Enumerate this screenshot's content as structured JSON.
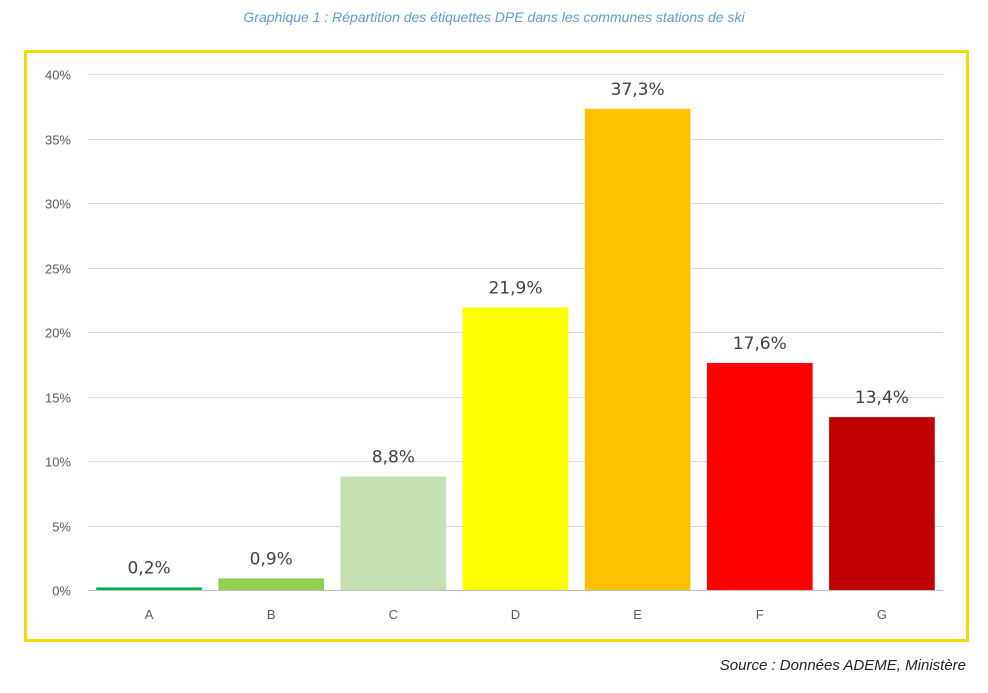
{
  "caption": "Graphique 1 : Répartition des étiquettes DPE dans les communes stations de ski",
  "source": "Source : Données ADEME, Ministère",
  "chart_data": {
    "type": "bar",
    "title": "Graphique 1 : Répartition des étiquettes DPE dans les communes stations de ski",
    "xlabel": "",
    "ylabel": "",
    "categories": [
      "A",
      "B",
      "C",
      "D",
      "E",
      "F",
      "G"
    ],
    "values": [
      0.2,
      0.9,
      8.8,
      21.9,
      37.3,
      17.6,
      13.4
    ],
    "data_labels": [
      "0,2%",
      "0,9%",
      "8,8%",
      "21,9%",
      "37,3%",
      "17,6%",
      "13,4%"
    ],
    "bar_colors": [
      "#00b050",
      "#92d050",
      "#c6e0b4",
      "#ffff00",
      "#ffc000",
      "#ff0000",
      "#c00000"
    ],
    "ylim": [
      0,
      40
    ],
    "yticks": [
      0,
      5,
      10,
      15,
      20,
      25,
      30,
      35,
      40
    ],
    "ytick_labels": [
      "0%",
      "5%",
      "10%",
      "15%",
      "20%",
      "25%",
      "30%",
      "35%",
      "40%"
    ],
    "grid": true,
    "legend": "none",
    "frame_color": "#f5d90a"
  }
}
